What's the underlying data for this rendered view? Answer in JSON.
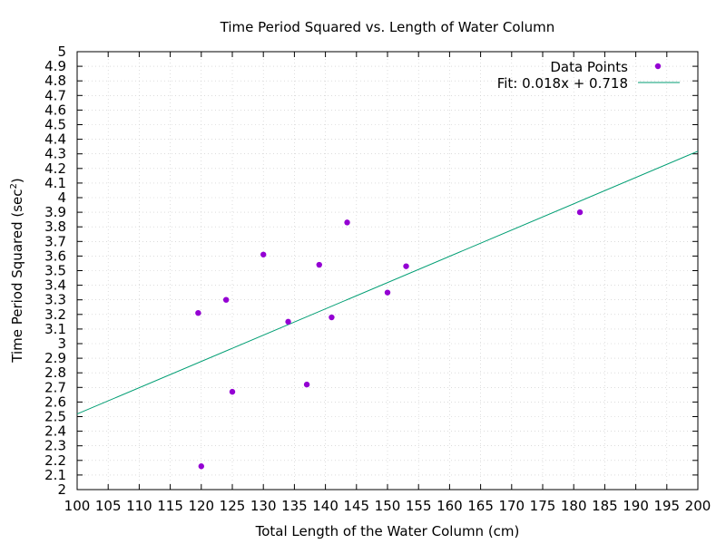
{
  "chart_data": {
    "type": "scatter",
    "title": "Time Period Squared vs. Length of Water Column",
    "xlabel": "Total Length of the Water Column (cm)",
    "ylabel": "Time Period Squared (sec",
    "ylabel_sup": "2",
    "ylabel_close": ")",
    "xlim": [
      100,
      200
    ],
    "ylim": [
      2,
      5
    ],
    "x_ticks": [
      100,
      105,
      110,
      115,
      120,
      125,
      130,
      135,
      140,
      145,
      150,
      155,
      160,
      165,
      170,
      175,
      180,
      185,
      190,
      195,
      200
    ],
    "y_ticks": [
      "2",
      "2.1",
      "2.2",
      "2.3",
      "2.4",
      "2.5",
      "2.6",
      "2.7",
      "2.8",
      "2.9",
      "3",
      "3.1",
      "3.2",
      "3.3",
      "3.4",
      "3.5",
      "3.6",
      "3.7",
      "3.8",
      "3.9",
      "4",
      "4.1",
      "4.2",
      "4.3",
      "4.4",
      "4.5",
      "4.6",
      "4.7",
      "4.8",
      "4.9",
      "5"
    ],
    "grid": true,
    "legend_position": "top-right",
    "series": [
      {
        "name": "Data Points",
        "kind": "points",
        "color": "#9400d3",
        "points": [
          [
            119.5,
            3.21
          ],
          [
            120,
            2.16
          ],
          [
            124,
            3.3
          ],
          [
            125,
            2.67
          ],
          [
            130,
            3.61
          ],
          [
            134,
            3.15
          ],
          [
            137,
            2.72
          ],
          [
            139,
            3.54
          ],
          [
            141,
            3.18
          ],
          [
            143.5,
            3.83
          ],
          [
            150,
            3.35
          ],
          [
            153,
            3.53
          ],
          [
            181,
            3.9
          ]
        ]
      },
      {
        "name": "Fit: 0.018x + 0.718",
        "kind": "line",
        "color": "#009e73",
        "slope": 0.018,
        "intercept": 0.718
      }
    ]
  }
}
